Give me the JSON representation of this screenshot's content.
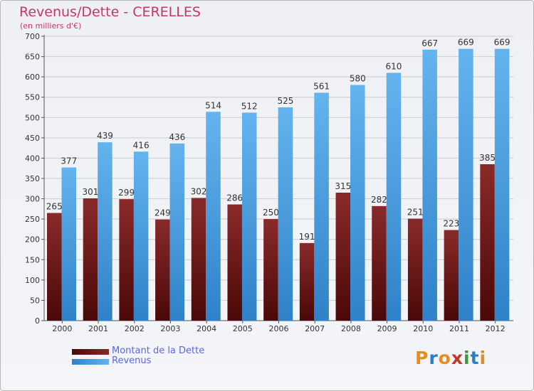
{
  "chart_data": {
    "type": "bar",
    "title": "Revenus/Dette - CERELLES",
    "subtitle": "(en milliers d'€)",
    "categories": [
      "2000",
      "2001",
      "2002",
      "2003",
      "2004",
      "2005",
      "2006",
      "2007",
      "2008",
      "2009",
      "2010",
      "2011",
      "2012"
    ],
    "series": [
      {
        "name": "Montant de la Dette",
        "color": "#7a1a1a",
        "values": [
          265,
          301,
          299,
          249,
          302,
          286,
          250,
          191,
          315,
          282,
          251,
          223,
          385
        ]
      },
      {
        "name": "Revenus",
        "color": "#4ea3e6",
        "values": [
          377,
          439,
          416,
          436,
          514,
          512,
          525,
          561,
          580,
          610,
          667,
          669,
          669
        ]
      }
    ],
    "ylim": [
      0,
      700
    ],
    "yticks": [
      0,
      50,
      100,
      150,
      200,
      250,
      300,
      350,
      400,
      450,
      500,
      550,
      600,
      650,
      700
    ],
    "grid": true,
    "legend": "bottom-left"
  },
  "logo": {
    "letters": [
      "P",
      "r",
      "o",
      "x",
      "i",
      "t",
      "i"
    ],
    "colors": [
      "#e88a1c",
      "#2a7fc1",
      "#e88a1c",
      "#c0392b",
      "#3a9a3a",
      "#2a7fc1",
      "#e88a1c"
    ]
  }
}
